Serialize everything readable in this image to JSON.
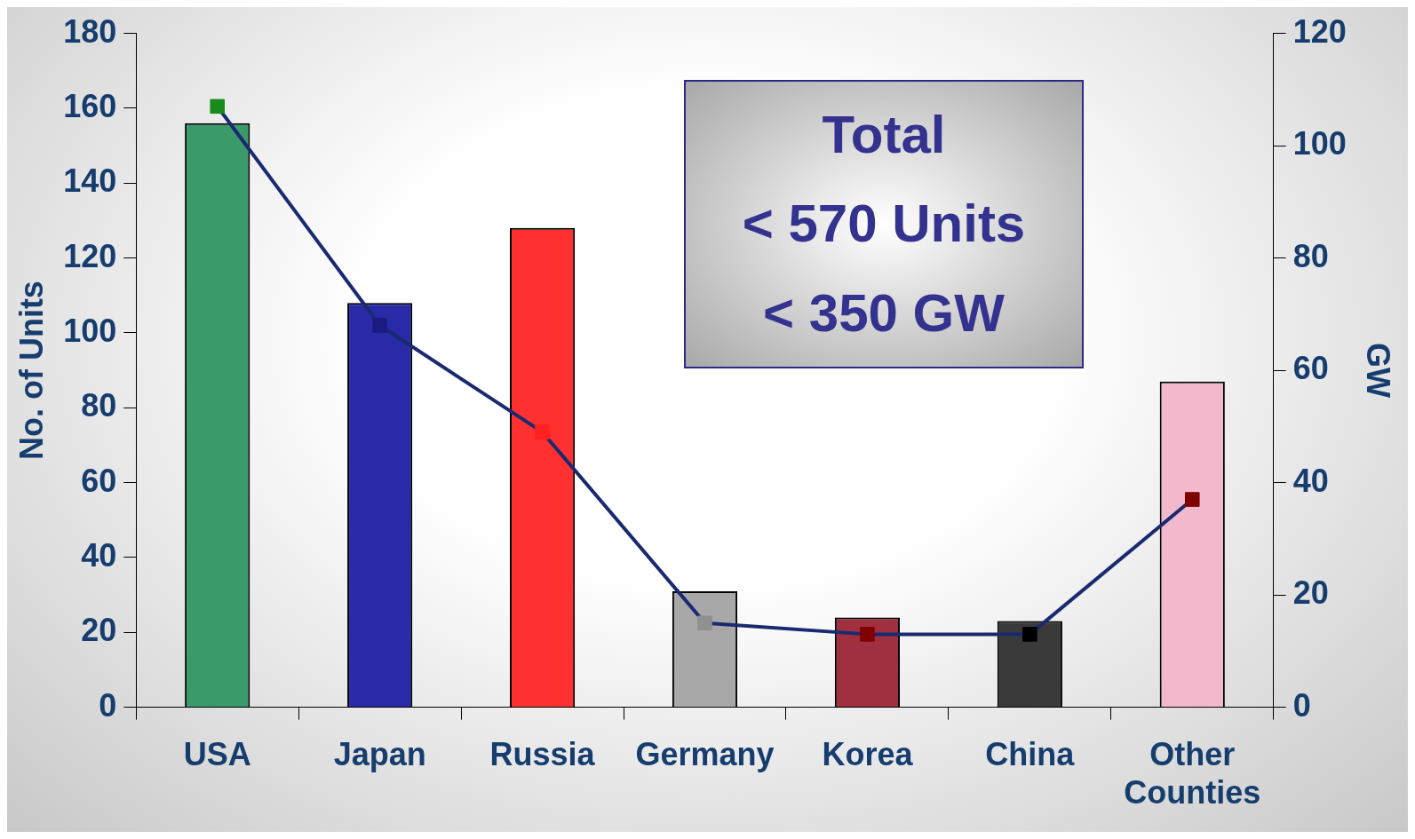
{
  "chart_data": {
    "type": "bar",
    "categories": [
      "USA",
      "Japan",
      "Russia",
      "Germany",
      "Korea",
      "China",
      "Other Counties"
    ],
    "series": [
      {
        "colors": [
          "#3a9a6a",
          "#2a2aa8",
          "#ff3030",
          "#a8a8a8",
          "#a03040",
          "#3a3a3a",
          "#f2b8cc"
        ],
        "values": [
          156,
          108,
          128,
          31,
          24,
          23,
          87
        ]
      },
      {
        "type": "line",
        "axis": "y2",
        "color": "#1a2a70",
        "colors": [
          "#1a8a1a",
          "#1a1a80",
          "#ff2020",
          "#909090",
          "#800000",
          "#000000",
          "#800000"
        ],
        "values": [
          107,
          68,
          49,
          15,
          13,
          13,
          37
        ]
      }
    ],
    "ylabel": "No. of Units",
    "y2label": "GW",
    "ylim": [
      0,
      180
    ],
    "yticks": [
      0,
      20,
      40,
      60,
      80,
      100,
      120,
      140,
      160,
      180
    ],
    "y2lim": [
      0,
      120
    ],
    "y2ticks": [
      0,
      20,
      40,
      60,
      80,
      100,
      120
    ],
    "annotations": [
      "Total",
      "< 570 Units",
      "< 350 GW"
    ],
    "grid": false,
    "legend": false,
    "marker": "square"
  }
}
